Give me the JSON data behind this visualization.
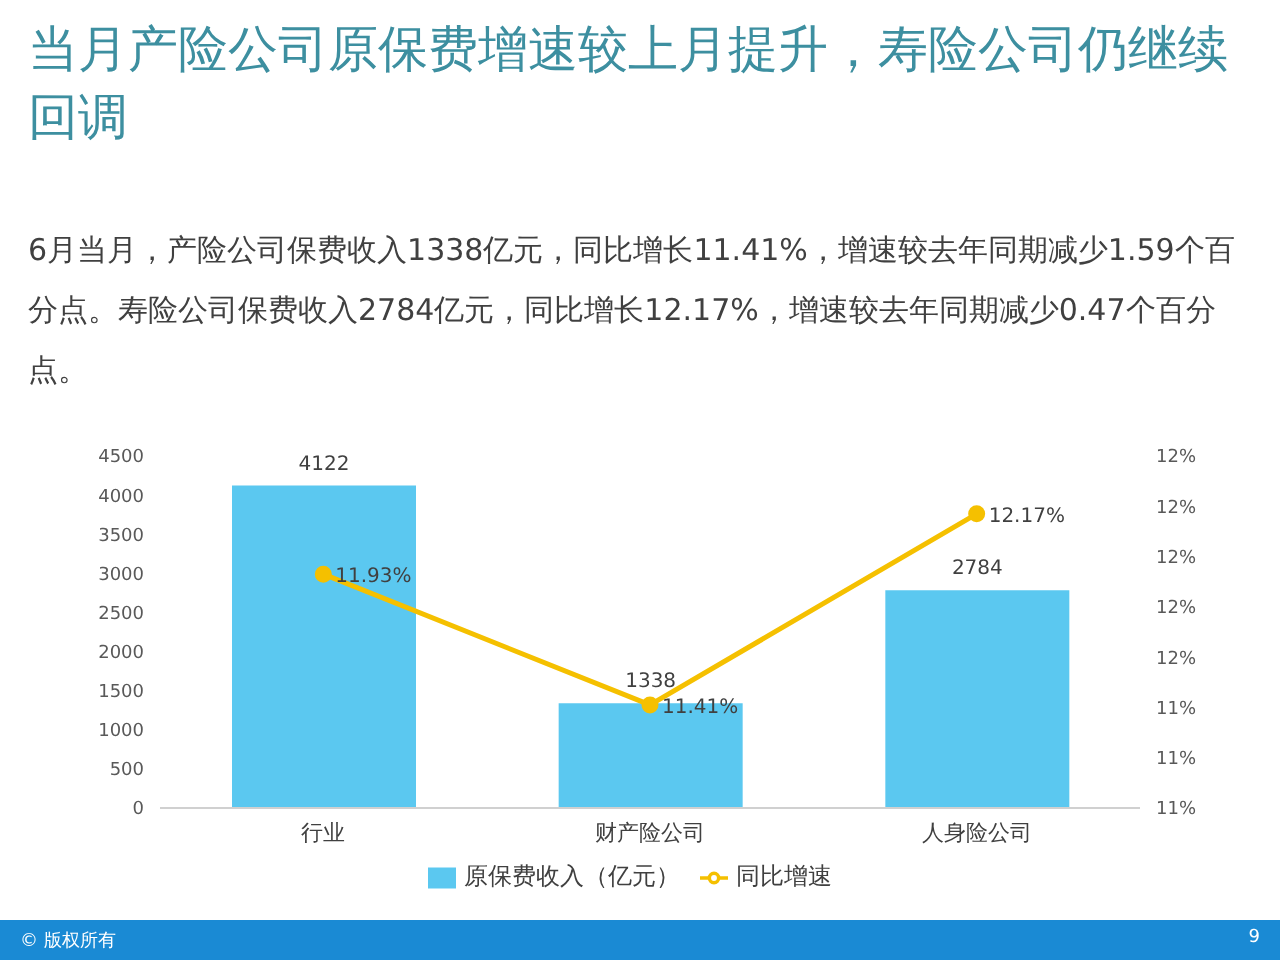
{
  "chart_data": {
    "type": "bar",
    "title": "当月产险公司原保费增速较上月提升，寿险公司仍继续回调",
    "subtitle": "6月当月，产险公司保费收入1338亿元，同比增长11.41%，增速较去年同期减少1.59个百分点。寿险公司保费收入2784亿元，同比增长12.17%，增速较去年同期减少0.47个百分点。",
    "categories": [
      "行业",
      "财产险公司",
      "人身险公司"
    ],
    "series": [
      {
        "name": "原保费收入（亿元）",
        "color": "#5bc8f0",
        "values": [
          4122,
          1338,
          2784
        ],
        "value_labels": [
          "4122",
          "1338",
          "2784"
        ]
      },
      {
        "name": "同比增速",
        "type": "line",
        "axis": "y2",
        "color": "#f5c000",
        "values": [
          11.93,
          11.41,
          12.17
        ],
        "value_labels": [
          "11.93%",
          "11.41%",
          "12.17%"
        ]
      }
    ],
    "ylim": [
      0,
      4500
    ],
    "yticks": [
      0,
      500,
      1000,
      1500,
      2000,
      2500,
      3000,
      3500,
      4000,
      4500
    ],
    "y2lim": [
      11,
      12.4
    ],
    "y2ticks": [
      {
        "value": 11,
        "label": "11%"
      },
      {
        "value": 11.2,
        "label": "11%"
      },
      {
        "value": 11.4,
        "label": "11%"
      },
      {
        "value": 11.6,
        "label": "12%"
      },
      {
        "value": 11.8,
        "label": "12%"
      },
      {
        "value": 12,
        "label": "12%"
      },
      {
        "value": 12.2,
        "label": "12%"
      },
      {
        "value": 12.4,
        "label": "12%"
      }
    ],
    "grid": false,
    "legend": "bottom",
    "marker": "circle",
    "line_style": "solid",
    "annotations": [
      "© 版权所有",
      "9"
    ]
  }
}
